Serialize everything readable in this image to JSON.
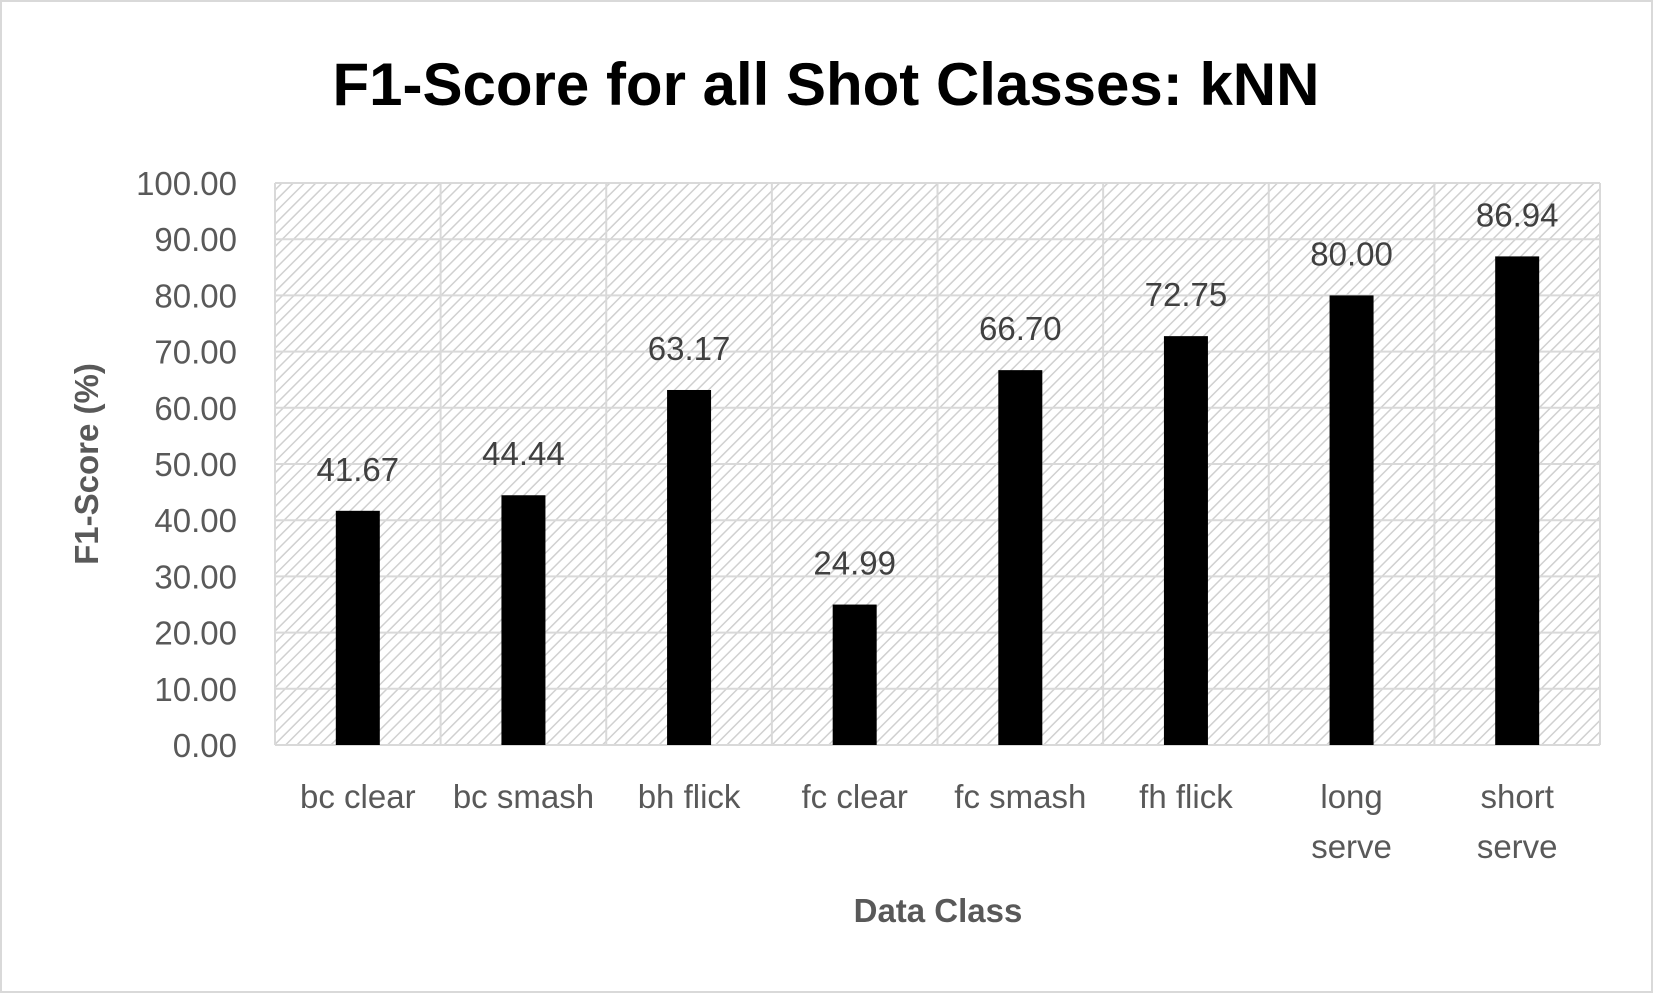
{
  "chart_data": {
    "type": "bar",
    "title": "F1-Score for all Shot Classes: kNN",
    "xlabel": "Data Class",
    "ylabel": "F1-Score (%)",
    "categories": [
      [
        "bc clear"
      ],
      [
        "bc smash"
      ],
      [
        "bh flick"
      ],
      [
        "fc clear"
      ],
      [
        "fc smash"
      ],
      [
        "fh flick"
      ],
      [
        "long",
        "serve"
      ],
      [
        "short",
        "serve"
      ]
    ],
    "values": [
      41.67,
      44.44,
      63.17,
      24.99,
      66.7,
      72.75,
      80.0,
      86.94
    ],
    "data_labels": [
      "41.67",
      "44.44",
      "63.17",
      "24.99",
      "66.70",
      "72.75",
      "80.00",
      "86.94"
    ],
    "yticks": [
      "0.00",
      "10.00",
      "20.00",
      "30.00",
      "40.00",
      "50.00",
      "60.00",
      "70.00",
      "80.00",
      "90.00",
      "100.00"
    ],
    "ylim": [
      0,
      100
    ],
    "grid": true,
    "legend": "none",
    "colors": {
      "bar": "#000000",
      "grid": "#d9d9d9",
      "hatch": "#d0d0d0",
      "text": "#595959"
    }
  }
}
